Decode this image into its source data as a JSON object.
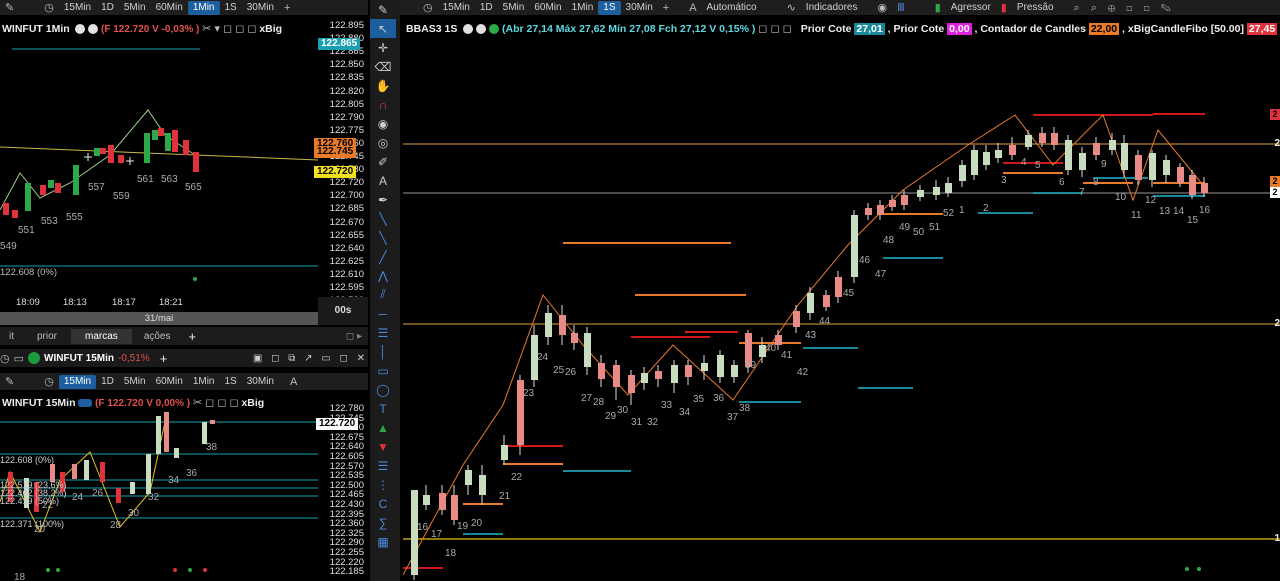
{
  "top_left_toolbar": {
    "tf": [
      "15Min",
      "1D",
      "5Min",
      "60Min",
      "1Min",
      "1S",
      "30Min"
    ],
    "selected": "1Min"
  },
  "left_chart1": {
    "title": "WINFUT 1Min",
    "info": "(F 122.720 V -0,03% )",
    "indicator": "xBig",
    "price_labels": [
      "122.895",
      "122.880",
      "122.865",
      "122.850",
      "122.835",
      "122.820",
      "122.805",
      "122.790",
      "122.775",
      "122.760",
      "122.745",
      "122.730",
      "122.720",
      "122.700",
      "122.685",
      "122.670",
      "122.655",
      "122.640",
      "122.625",
      "122.610",
      "122.595",
      "122.580"
    ],
    "tag_top": "122.865",
    "tag_orange1": "122.760",
    "tag_orange2": "122.745",
    "tag_yellow": "122.720",
    "fib_label": "122.608 (0%)",
    "candle_numbers": [
      "549",
      "551",
      "553",
      "555",
      "557",
      "559",
      "561",
      "563",
      "565"
    ],
    "time_labels": [
      "18:09",
      "18:13",
      "18:17",
      "18:21"
    ],
    "date_label": "31/mai",
    "zoom": "00s"
  },
  "tabs": {
    "items": [
      "it",
      "prior",
      "marcas",
      "ações"
    ],
    "active": "marcas",
    "add": "+"
  },
  "left_chart2_window": {
    "title": "WINFUT 15Min",
    "change": "-0,51%",
    "add": "+",
    "tf": [
      "15Min",
      "1D",
      "5Min",
      "60Min",
      "1Min",
      "1S",
      "30Min"
    ],
    "selected": "15Min",
    "mode_label": "A"
  },
  "left_chart2": {
    "title": "WINFUT 15Min",
    "info": "(F 122.720 V 0,00% )",
    "indicator": "xBig",
    "price_labels": [
      "122.780",
      "122.745",
      "122.710",
      "122.675",
      "122.640",
      "122.605",
      "122.570",
      "122.535",
      "122.500",
      "122.465",
      "122.430",
      "122.395",
      "122.360",
      "122.325",
      "122.290",
      "122.255",
      "122.220",
      "122.185"
    ],
    "tag_yellow": "122.720",
    "fib_labels": [
      "122.608 (0%)",
      "122.519 (23,6%)",
      "122.462 (38,2%)",
      "122.419 (50%)",
      "122.371 (100%)"
    ],
    "candle_numbers": [
      "18",
      "20",
      "22",
      "24",
      "26",
      "28",
      "30",
      "32",
      "34",
      "36",
      "38"
    ]
  },
  "main_toolbar": {
    "tf": [
      "15Min",
      "1D",
      "5Min",
      "60Min",
      "1Min",
      "1S",
      "30Min"
    ],
    "selected": "1S",
    "auto_label": "Automático",
    "indicators_label": "Indicadores",
    "aggressor_label": "Agressor",
    "pressure_label": "Pressão",
    "mode_label": "A"
  },
  "main_chart": {
    "symbol": "BBAS3 1S",
    "info": "(Abr 27,14 Máx 27,62 Mín 27,08 Fch 27,12 V 0,15% )",
    "prior_cote_label1": "Prior Cote",
    "prior_cote_value1": "27,01",
    "prior_cote_label2": ", Prior Cote",
    "prior_cote_value2": "0,00",
    "candles_label": ", Contador de Candles",
    "candles_value": "22,00",
    "xbig_label": ", xBigCandleFibo [50.00]",
    "xbig_value": "27,45",
    "right_edge_digits": [
      "2",
      "2",
      "2",
      "2",
      "2",
      "1"
    ],
    "candle_numbers": [
      "16",
      "17",
      "18",
      "19",
      "20",
      "21",
      "22",
      "23",
      "24",
      "25",
      "26",
      "27",
      "28",
      "29",
      "30",
      "31",
      "32",
      "33",
      "34",
      "35",
      "36",
      "37",
      "38",
      "39",
      "40",
      "41",
      "42",
      "43",
      "44",
      "45",
      "46",
      "47",
      "48",
      "49",
      "50",
      "51",
      "52",
      "1",
      "2",
      "3",
      "4",
      "5",
      "6",
      "7",
      "8",
      "9",
      "10",
      "11",
      "12",
      "13",
      "14",
      "15",
      "16",
      "17",
      "18",
      "19",
      "20",
      "21",
      "22"
    ]
  },
  "colors": {
    "bull_candle": "#c8dcc0",
    "bear_candle": "#e88a86",
    "green_candle": "#2fa84a",
    "red_candle": "#e0323a",
    "orange_line": "#e87a2a",
    "teal_line": "#1a8a9a",
    "red_line": "#d01818",
    "yellow_line": "#e6c21a",
    "accent_tab": "#1d5f9e"
  },
  "icons": [
    "pencil-icon",
    "clock-icon",
    "play-icon",
    "crosshair-icon",
    "eraser-icon",
    "hand-icon",
    "magnet-icon",
    "eye-icon",
    "text-icon",
    "arrow-up-icon",
    "arrow-down-icon",
    "line-icon",
    "fib-icon"
  ]
}
